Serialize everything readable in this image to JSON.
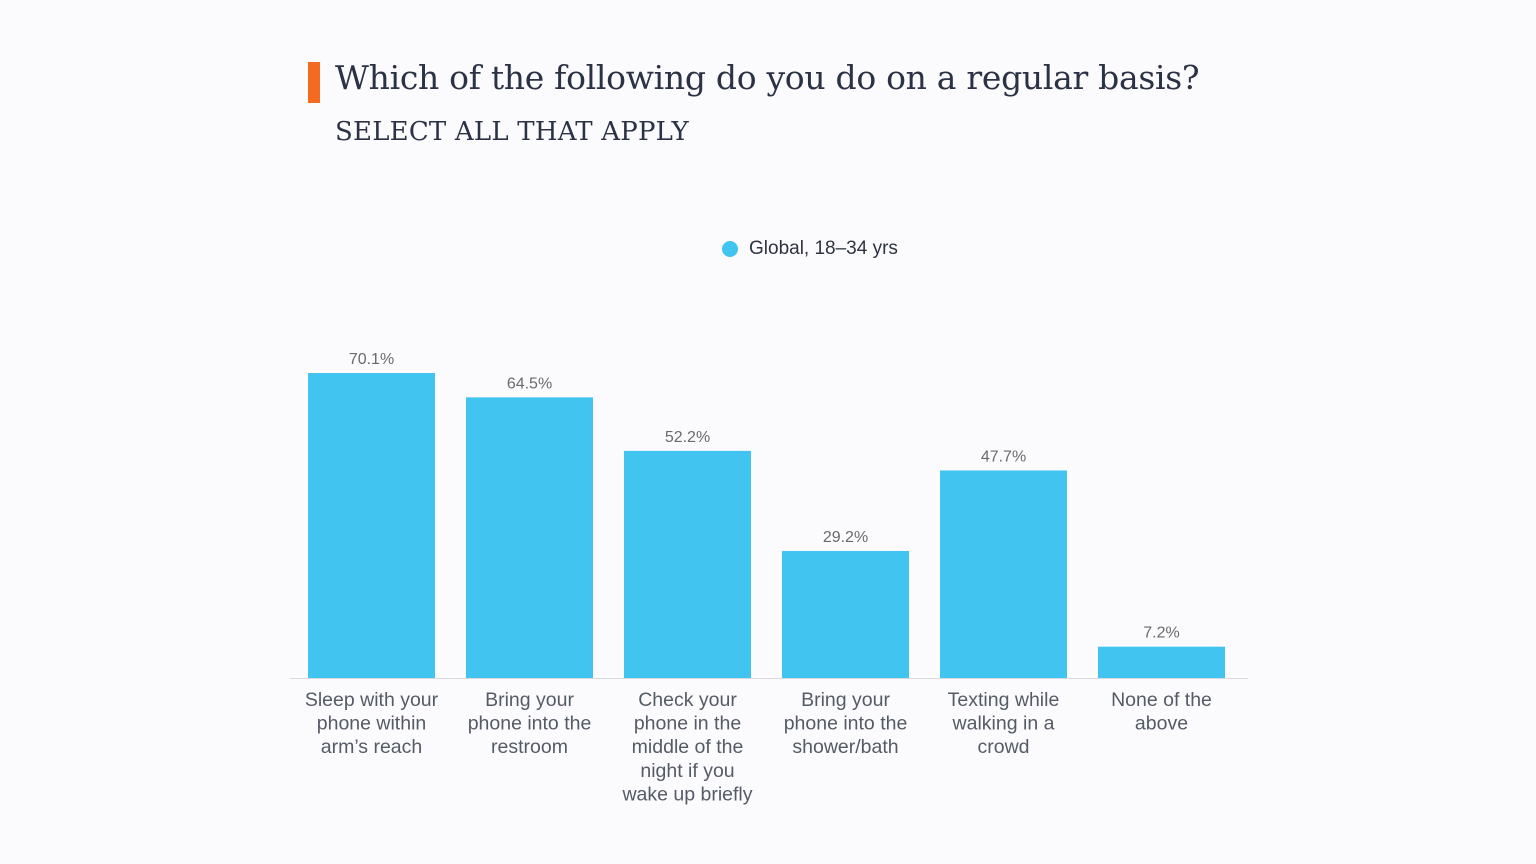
{
  "chart_data": {
    "type": "bar",
    "title": "Which of the following do you do on a regular basis?",
    "subtitle": "SELECT ALL THAT APPLY",
    "categories": [
      [
        "Sleep with your",
        "phone within",
        "arm’s reach"
      ],
      [
        "Bring your",
        "phone into the",
        "restroom"
      ],
      [
        "Check your",
        "phone in the",
        "middle of the",
        "night if you",
        "wake up briefly"
      ],
      [
        "Bring your",
        "phone into the",
        "shower/bath"
      ],
      [
        "Texting while",
        "walking in a",
        "crowd"
      ],
      [
        "None of the",
        "above"
      ]
    ],
    "series": [
      {
        "name": "Global, 18–34 yrs",
        "values": [
          70.1,
          64.5,
          52.2,
          29.2,
          47.7,
          7.2
        ],
        "labels": [
          "70.1%",
          "64.5%",
          "52.2%",
          "29.2%",
          "47.7%",
          "7.2%"
        ],
        "color": "#41c4f0"
      }
    ],
    "ylim": [
      0,
      70.1
    ],
    "grid": false,
    "legend_position": "top-center"
  },
  "colors": {
    "accent": "#f26b21",
    "bar": "#41c4f0",
    "baseline": "#d9d9de"
  }
}
